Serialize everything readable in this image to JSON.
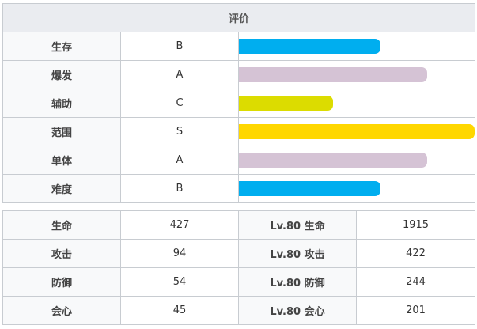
{
  "rating": {
    "title": "评价",
    "rows": [
      {
        "label": "生存",
        "grade": "B",
        "level": 0.6,
        "color": "#00aeef"
      },
      {
        "label": "爆发",
        "grade": "A",
        "level": 0.8,
        "color": "#d5c3d5"
      },
      {
        "label": "辅助",
        "grade": "C",
        "level": 0.4,
        "color": "#dcdc00"
      },
      {
        "label": "范围",
        "grade": "S",
        "level": 1.0,
        "color": "#ffd700"
      },
      {
        "label": "单体",
        "grade": "A",
        "level": 0.8,
        "color": "#d5c3d5"
      },
      {
        "label": "难度",
        "grade": "B",
        "level": 0.6,
        "color": "#00aeef"
      }
    ]
  },
  "stats": {
    "rows": [
      {
        "label": "生命",
        "value": "427",
        "lv_label": "Lv.80 生命",
        "lv_value": "1915"
      },
      {
        "label": "攻击",
        "value": "94",
        "lv_label": "Lv.80 攻击",
        "lv_value": "422"
      },
      {
        "label": "防御",
        "value": "54",
        "lv_label": "Lv.80 防御",
        "lv_value": "244"
      },
      {
        "label": "会心",
        "value": "45",
        "lv_label": "Lv.80 会心",
        "lv_value": "201"
      }
    ]
  }
}
